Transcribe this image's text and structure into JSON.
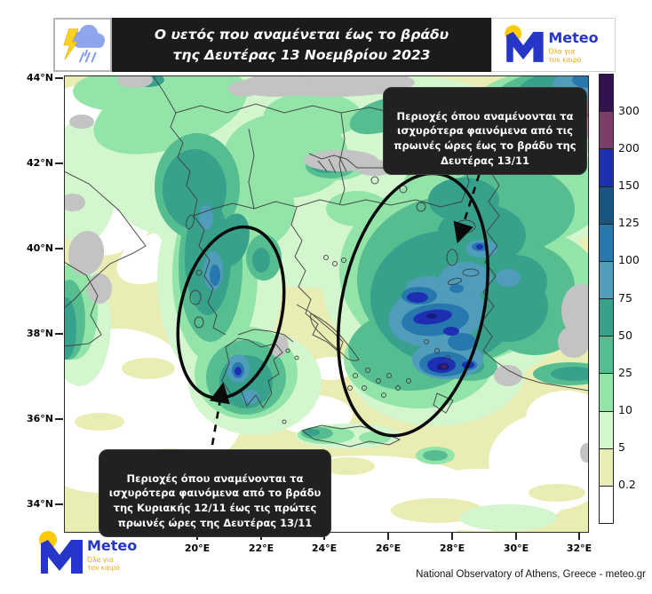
{
  "header": {
    "title_line1": "Ο υετός που αναμένεται έως το βράδυ",
    "title_line2": "της Δευτέρας 13 Νοεμβρίου 2023",
    "logo": {
      "name": "Meteo",
      "tagline_line1": "Όλα για",
      "tagline_line2": "τον καιρό"
    }
  },
  "map": {
    "annotations": [
      {
        "text": "Περιοχές όπου αναμένονται τα\nισχυρότερα φαινόμενα από τις\nπρωινές ώρες έως το βράδυ της\nΔευτέρας 13/11"
      },
      {
        "text": "Περιοχές όπου αναμένονται τα\nισχυρότερα φαινόμενα από το βράδυ\nτης Κυριακής 12/11 έως τις πρώτες\nπρωινές ώρες της Δευτέρας 13/11"
      }
    ]
  },
  "axes": {
    "lat": [
      "44°N",
      "42°N",
      "40°N",
      "38°N",
      "36°N",
      "34°N"
    ],
    "lon": [
      "20°E",
      "22°E",
      "24°E",
      "26°E",
      "28°E",
      "30°E",
      "32°E"
    ]
  },
  "colorbar": {
    "labels_top_to_bottom": [
      "300",
      "200",
      "150",
      "125",
      "100",
      "75",
      "50",
      "25",
      "10",
      "5",
      "0.2"
    ],
    "colors_top_to_bottom": [
      "#331250",
      "#7b3e68",
      "#1e2fb4",
      "#1a5480",
      "#2878b0",
      "#4f9cbb",
      "#38a18c",
      "#56bd90",
      "#93e4a9",
      "#d4f6cf",
      "#eaedb3",
      "#ffffff"
    ]
  },
  "footer": {
    "attribution": "National Observatory of Athens, Greece - meteo.gr",
    "logo": {
      "name": "Meteo",
      "tagline_line1": "Όλα για",
      "tagline_line2": "τον καιρό"
    }
  },
  "theme": {
    "banner_bg": "#1b1b1b",
    "annotation_bg": "#212121",
    "meteo_blue": "#2636c8",
    "meteo_orange": "#f2a319",
    "sun_yellow": "#ffcb05",
    "nodata_gray": "#c3c3c3"
  }
}
